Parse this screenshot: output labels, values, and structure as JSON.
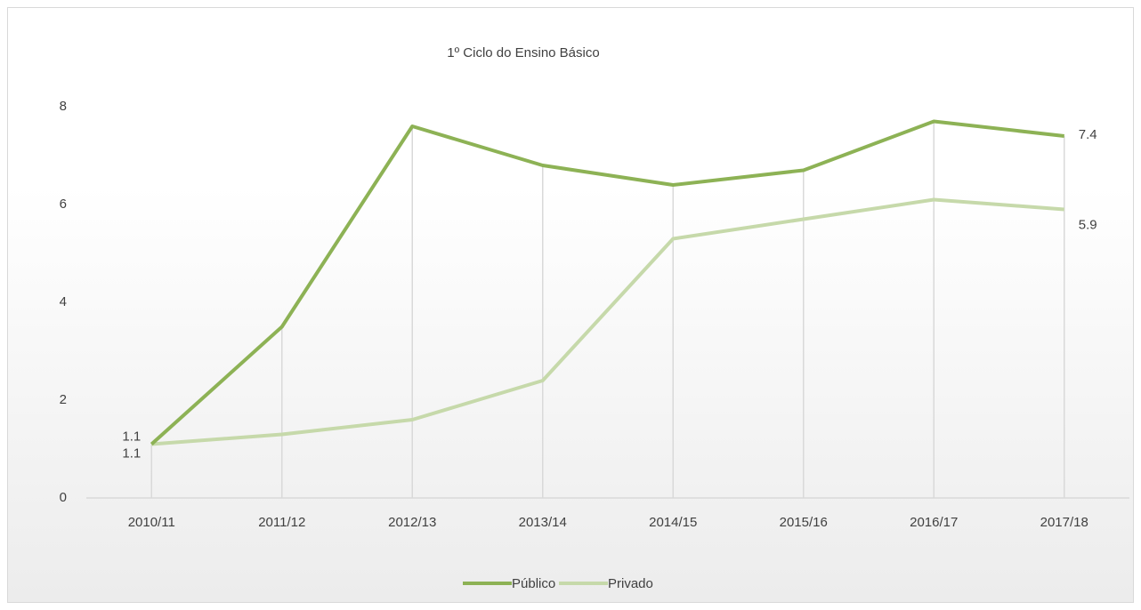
{
  "chart_data": {
    "type": "line",
    "title": "1º Ciclo do Ensino Básico",
    "categories": [
      "2010/11",
      "2011/12",
      "2012/13",
      "2013/14",
      "2014/15",
      "2015/16",
      "2016/17",
      "2017/18"
    ],
    "series": [
      {
        "name": "Público",
        "color": "#8db255",
        "values": [
          1.1,
          3.5,
          7.6,
          6.8,
          6.4,
          6.7,
          7.7,
          7.4
        ]
      },
      {
        "name": "Privado",
        "color": "#c6d9aa",
        "values": [
          1.1,
          1.3,
          1.6,
          2.4,
          5.3,
          5.7,
          6.1,
          5.9
        ]
      }
    ],
    "ylim": [
      0,
      8
    ],
    "yticks": [
      0,
      2,
      4,
      6,
      8
    ],
    "legend": "bottom"
  }
}
